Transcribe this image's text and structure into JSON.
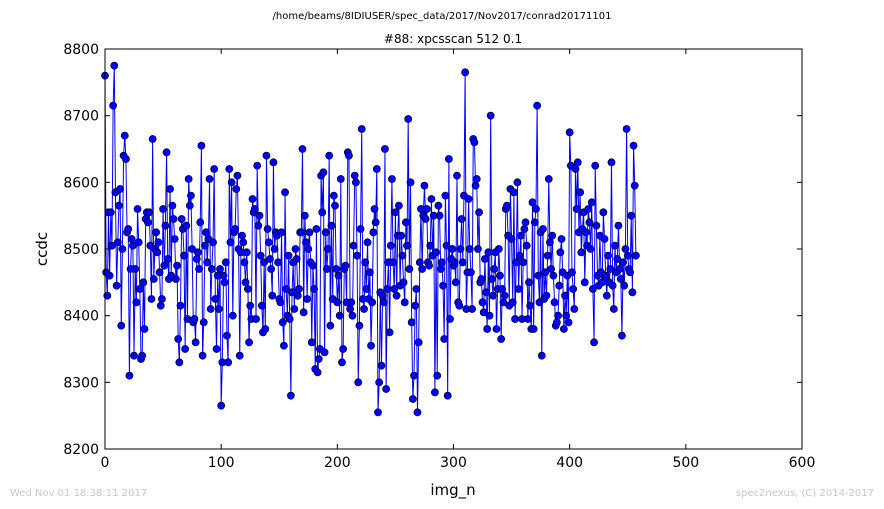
{
  "figure": {
    "suptitle": "/home/beams/8IDIUSER/spec_data/2017/Nov2017/conrad20171101",
    "timestamp": "Wed Nov 01 18:38:11 2017",
    "credit": "spec2nexus, (C) 2014-2017"
  },
  "chart_data": {
    "type": "line",
    "title": "#88: xpcsscan 512 0.1",
    "xlabel": "img_n",
    "ylabel": "ccdc",
    "xlim": [
      0,
      600
    ],
    "ylim": [
      8200,
      8800
    ],
    "xticks": [
      0,
      100,
      200,
      300,
      400,
      500,
      600
    ],
    "yticks": [
      8200,
      8300,
      8400,
      8500,
      8600,
      8700,
      8800
    ],
    "grid": false,
    "legend": "none",
    "line_color": "#0000ff",
    "marker_color": "#0000ff",
    "marker": "circle",
    "x_start": 0,
    "x_step": 1,
    "y": [
      8760,
      8465,
      8430,
      8555,
      8460,
      8555,
      8505,
      8715,
      8775,
      8585,
      8445,
      8510,
      8565,
      8590,
      8385,
      8500,
      8640,
      8670,
      8635,
      8525,
      8530,
      8310,
      8470,
      8515,
      8505,
      8340,
      8470,
      8420,
      8560,
      8510,
      8440,
      8335,
      8340,
      8450,
      8380,
      8545,
      8555,
      8540,
      8555,
      8505,
      8425,
      8665,
      8455,
      8500,
      8525,
      8495,
      8510,
      8465,
      8415,
      8425,
      8560,
      8475,
      8535,
      8645,
      8485,
      8455,
      8590,
      8460,
      8565,
      8545,
      8515,
      8455,
      8475,
      8365,
      8330,
      8415,
      8545,
      8530,
      8490,
      8350,
      8535,
      8395,
      8605,
      8565,
      8580,
      8500,
      8390,
      8395,
      8360,
      8485,
      8495,
      8470,
      8540,
      8655,
      8340,
      8390,
      8505,
      8525,
      8480,
      8515,
      8605,
      8410,
      8470,
      8510,
      8620,
      8425,
      8350,
      8460,
      8410,
      8470,
      8265,
      8330,
      8460,
      8450,
      8480,
      8370,
      8330,
      8620,
      8510,
      8600,
      8400,
      8525,
      8530,
      8590,
      8610,
      8500,
      8340,
      8495,
      8520,
      8510,
      8480,
      8450,
      8495,
      8440,
      8360,
      8415,
      8395,
      8575,
      8555,
      8560,
      8395,
      8625,
      8535,
      8550,
      8490,
      8415,
      8375,
      8480,
      8380,
      8640,
      8530,
      8510,
      8485,
      8470,
      8430,
      8630,
      8500,
      8525,
      8520,
      8480,
      8425,
      8420,
      8525,
      8390,
      8355,
      8585,
      8440,
      8400,
      8490,
      8395,
      8280,
      8435,
      8480,
      8410,
      8500,
      8485,
      8430,
      8440,
      8525,
      8525,
      8650,
      8405,
      8550,
      8510,
      8425,
      8500,
      8525,
      8480,
      8360,
      8475,
      8440,
      8320,
      8530,
      8315,
      8335,
      8350,
      8610,
      8555,
      8615,
      8345,
      8525,
      8470,
      8500,
      8640,
      8385,
      8535,
      8425,
      8580,
      8565,
      8470,
      8420,
      8460,
      8400,
      8605,
      8330,
      8350,
      8470,
      8475,
      8420,
      8645,
      8640,
      8410,
      8420,
      8400,
      8505,
      8610,
      8600,
      8490,
      8300,
      8385,
      8530,
      8680,
      8425,
      8410,
      8480,
      8440,
      8510,
      8425,
      8465,
      8355,
      8420,
      8525,
      8560,
      8540,
      8620,
      8255,
      8300,
      8435,
      8325,
      8430,
      8420,
      8650,
      8290,
      8440,
      8480,
      8375,
      8505,
      8605,
      8480,
      8440,
      8555,
      8430,
      8520,
      8565,
      8445,
      8520,
      8490,
      8450,
      8420,
      8540,
      8505,
      8695,
      8470,
      8600,
      8390,
      8275,
      8310,
      8415,
      8440,
      8255,
      8360,
      8480,
      8560,
      8470,
      8550,
      8595,
      8545,
      8560,
      8480,
      8475,
      8505,
      8575,
      8490,
      8550,
      8285,
      8495,
      8310,
      8565,
      8550,
      8470,
      8480,
      8445,
      8365,
      8580,
      8505,
      8280,
      8635,
      8395,
      8485,
      8500,
      8475,
      8480,
      8450,
      8610,
      8420,
      8415,
      8500,
      8545,
      8480,
      8580,
      8765,
      8410,
      8465,
      8575,
      8500,
      8465,
      8410,
      8665,
      8660,
      8595,
      8605,
      8500,
      8555,
      8450,
      8455,
      8420,
      8405,
      8485,
      8435,
      8380,
      8495,
      8400,
      8700,
      8455,
      8430,
      8470,
      8495,
      8380,
      8440,
      8500,
      8460,
      8365,
      8440,
      8420,
      8430,
      8560,
      8565,
      8520,
      8415,
      8590,
      8515,
      8420,
      8585,
      8395,
      8480,
      8600,
      8440,
      8490,
      8520,
      8395,
      8480,
      8530,
      8540,
      8505,
      8395,
      8450,
      8415,
      8380,
      8570,
      8380,
      8540,
      8560,
      8715,
      8460,
      8420,
      8525,
      8340,
      8530,
      8425,
      8465,
      8430,
      8490,
      8605,
      8510,
      8470,
      8520,
      8460,
      8420,
      8385,
      8390,
      8400,
      8445,
      8495,
      8515,
      8465,
      8380,
      8430,
      8400,
      8460,
      8390,
      8675,
      8625,
      8465,
      8440,
      8410,
      8620,
      8560,
      8630,
      8525,
      8585,
      8495,
      8530,
      8555,
      8450,
      8525,
      8505,
      8560,
      8540,
      8500,
      8570,
      8440,
      8360,
      8625,
      8535,
      8460,
      8445,
      8520,
      8465,
      8450,
      8555,
      8515,
      8460,
      8430,
      8490,
      8450,
      8470,
      8630,
      8445,
      8410,
      8505,
      8465,
      8485,
      8535,
      8470,
      8455,
      8370,
      8480,
      8445,
      8500,
      8680,
      8490,
      8470,
      8465,
      8550,
      8435,
      8655,
      8595,
      8490
    ]
  }
}
